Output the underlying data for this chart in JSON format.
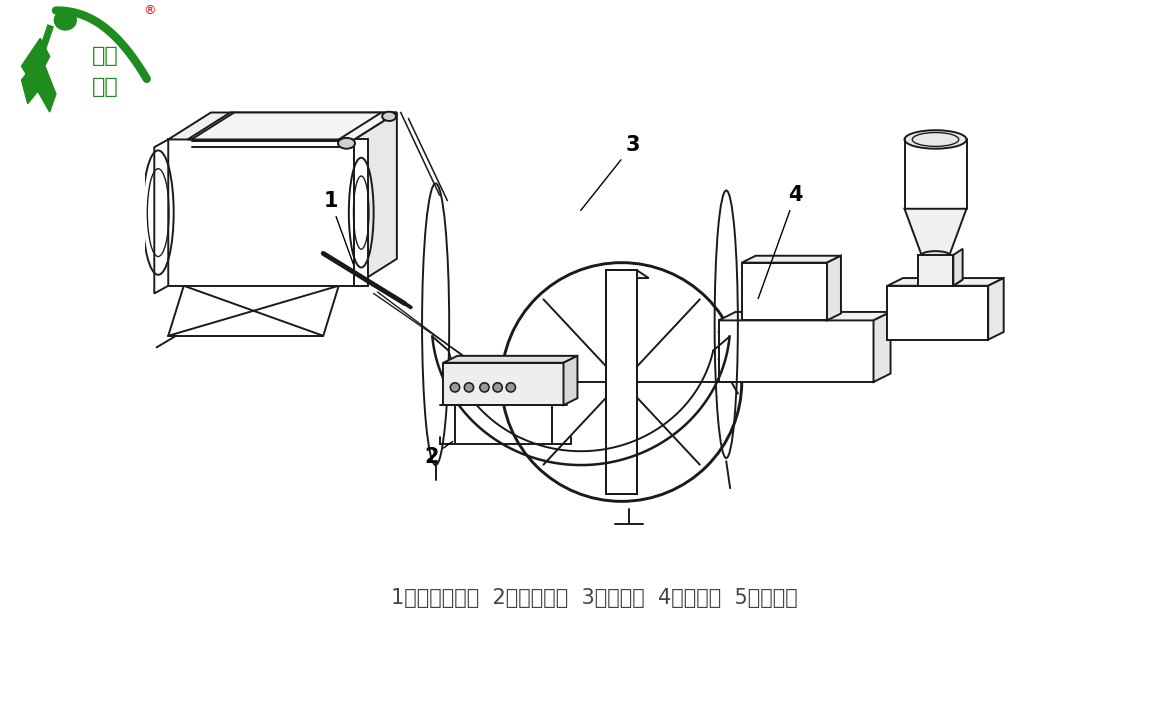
{
  "background_color": "#ffffff",
  "caption": "1、静电驻极棒  2、高压电源  3、接收辊  4、熔喷头  5、收卷辊",
  "caption_fontsize": 15,
  "caption_color": "#444444",
  "line_color": "#1a1a1a",
  "line_width": 1.4,
  "label_fontsize": 15,
  "logo_text1": "凯迪",
  "logo_text2": "正大",
  "logo_color": "#1e8c1e"
}
